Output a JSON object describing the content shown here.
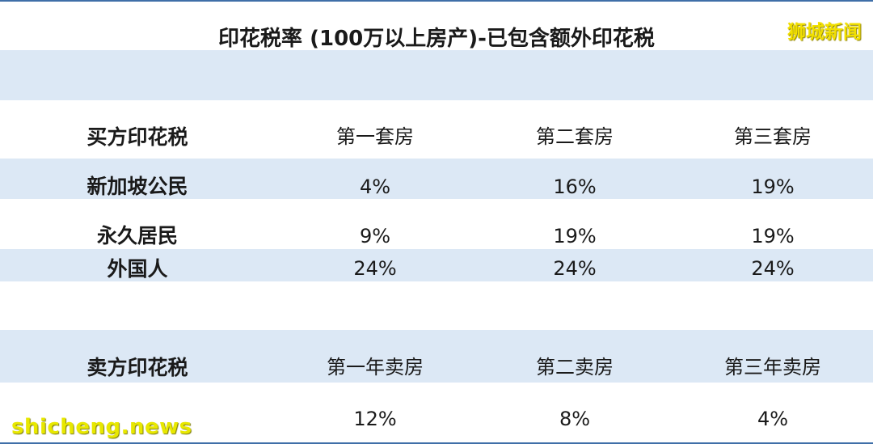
{
  "title": "印花税率 (100万以上房产)-已包含额外印花税",
  "watermark_top": "狮城新闻",
  "watermark_bottom": "shicheng.news",
  "buyer_section": {
    "header": [
      "买方印花税",
      "第一套房",
      "第二套房",
      "第三套房"
    ],
    "rows": [
      {
        "label": "新加坡公民",
        "values": [
          "4%",
          "16%",
          "19%"
        ]
      },
      {
        "label": "永久居民",
        "values": [
          "9%",
          "19%",
          "19%"
        ]
      },
      {
        "label": "外国人",
        "values": [
          "24%",
          "24%",
          "24%"
        ]
      }
    ]
  },
  "seller_section": {
    "header": [
      "卖方印花税",
      "第一年卖房",
      "第二卖房",
      "第三年卖房"
    ],
    "rows": [
      {
        "label": "",
        "values": [
          "12%",
          "8%",
          "4%"
        ]
      }
    ]
  },
  "colors": {
    "band": "#dce8f5",
    "border": "#3f6fa8"
  }
}
